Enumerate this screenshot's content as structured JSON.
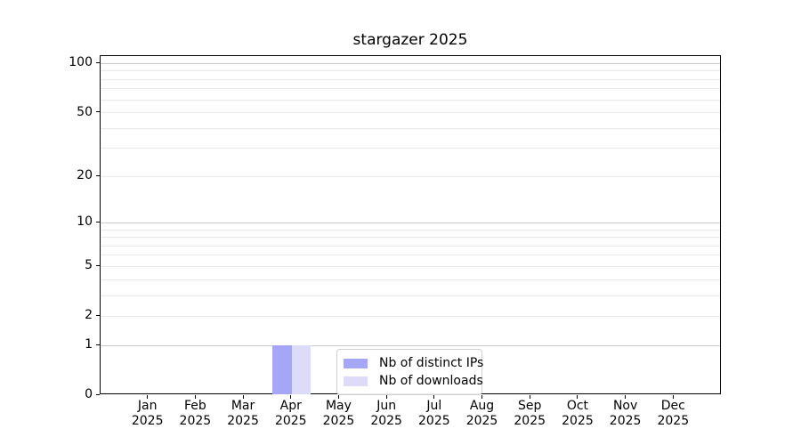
{
  "figure": {
    "background": "#ffffff"
  },
  "chart_data": {
    "type": "bar",
    "title": "stargazer 2025",
    "categories": [
      "Jan",
      "Feb",
      "Mar",
      "Apr",
      "May",
      "Jun",
      "Jul",
      "Aug",
      "Sep",
      "Oct",
      "Nov",
      "Dec"
    ],
    "year": "2025",
    "series": [
      {
        "name": "Nb of distinct IPs",
        "color": "#a6a6f6",
        "values": [
          0,
          0,
          0,
          1,
          0,
          0,
          0,
          0,
          0,
          0,
          0,
          0
        ]
      },
      {
        "name": "Nb of downloads",
        "color": "#dcdcf8",
        "values": [
          0,
          0,
          0,
          1,
          0,
          0,
          0,
          0,
          0,
          0,
          0,
          0
        ]
      }
    ],
    "yscale": "log1p",
    "y_ticks": [
      0,
      1,
      2,
      5,
      10,
      20,
      50,
      100
    ],
    "y_tick_labels": [
      "0",
      "1",
      "2",
      "5",
      "10",
      "20",
      "50",
      "100"
    ],
    "ylim": [
      0,
      111
    ],
    "xlabel": "",
    "ylabel": "",
    "grid": true,
    "legend_position": "inside-bottom-center"
  }
}
